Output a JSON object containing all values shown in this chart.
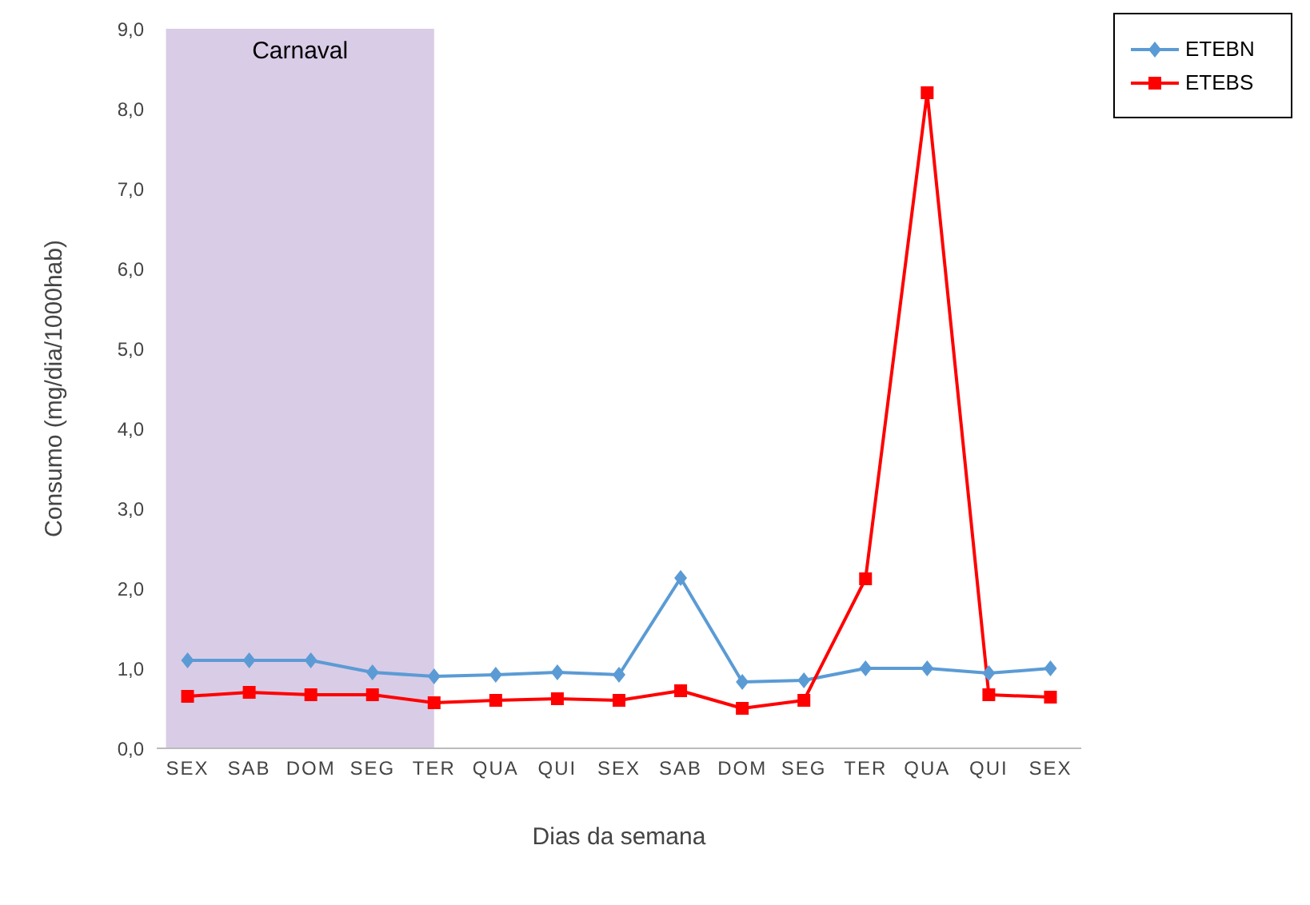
{
  "chart_data": {
    "type": "line",
    "xlabel": "Dias da semana",
    "ylabel": "Consumo (mg/dia/1000hab)",
    "categories": [
      "SEX",
      "SAB",
      "DOM",
      "SEG",
      "TER",
      "QUA",
      "QUI",
      "SEX",
      "SAB",
      "DOM",
      "SEG",
      "TER",
      "QUA",
      "QUI",
      "SEX"
    ],
    "series": [
      {
        "name": "ETEBN",
        "color": "#5b9bd5",
        "marker": "diamond",
        "values": [
          1.1,
          1.1,
          1.1,
          0.95,
          0.9,
          0.92,
          0.95,
          0.92,
          2.13,
          0.83,
          0.85,
          1.0,
          1.0,
          0.94,
          1.0
        ]
      },
      {
        "name": "ETEBS",
        "color": "#ff0000",
        "marker": "square",
        "values": [
          0.65,
          0.7,
          0.67,
          0.67,
          0.57,
          0.6,
          0.62,
          0.6,
          0.72,
          0.5,
          0.6,
          2.12,
          8.2,
          0.67,
          0.64
        ]
      }
    ],
    "ylim": [
      0,
      9
    ],
    "yticks": [
      {
        "value": 0,
        "label": "0,0"
      },
      {
        "value": 1,
        "label": "1,0"
      },
      {
        "value": 2,
        "label": "2,0"
      },
      {
        "value": 3,
        "label": "3,0"
      },
      {
        "value": 4,
        "label": "4,0"
      },
      {
        "value": 5,
        "label": "5,0"
      },
      {
        "value": 6,
        "label": "6,0"
      },
      {
        "value": 7,
        "label": "7,0"
      },
      {
        "value": 8,
        "label": "8,0"
      },
      {
        "value": 9,
        "label": "9,0"
      }
    ],
    "bands": [
      {
        "axis": "x",
        "from": "SEX",
        "to": "TER",
        "label": "Carnaval",
        "color": "#d9cce6"
      }
    ],
    "grid": false,
    "legend": "top right"
  }
}
